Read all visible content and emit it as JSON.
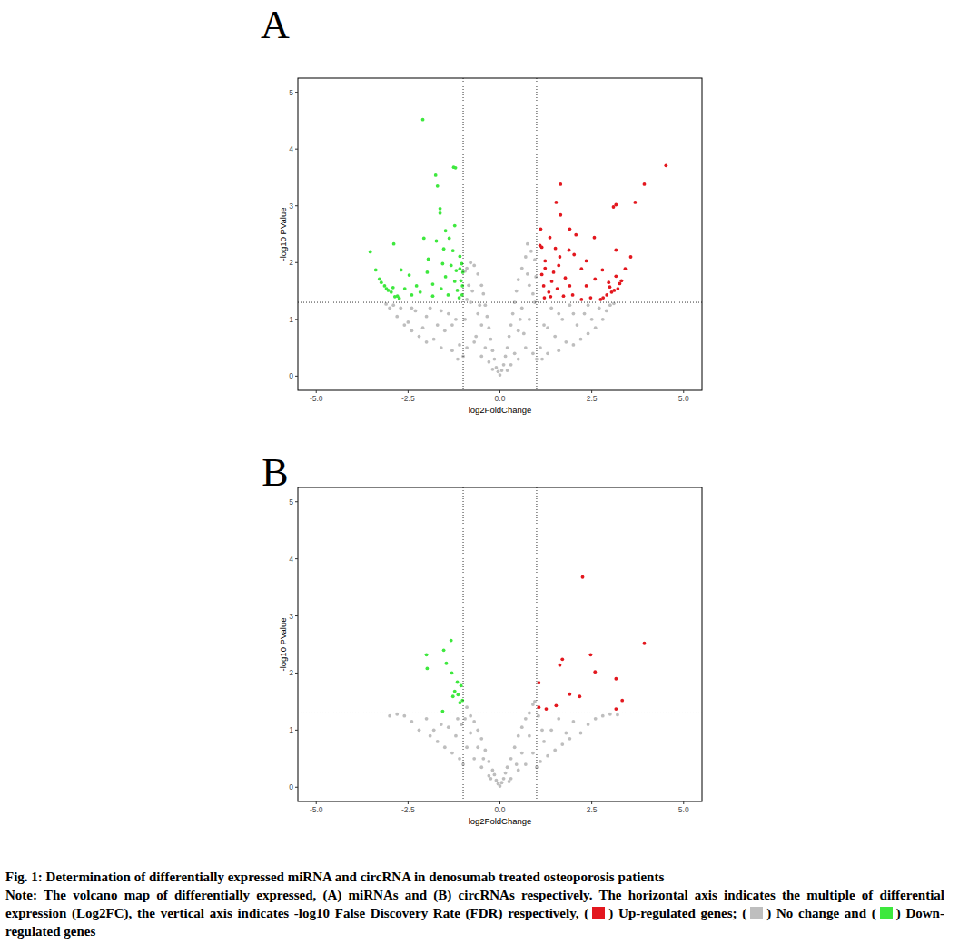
{
  "chart_data": [
    {
      "type": "scatter",
      "title": "A",
      "x_label": "log2FoldChange",
      "y_label": "-log10 PValue",
      "xlim": [
        -5.5,
        5.5
      ],
      "ylim": [
        -0.25,
        5.25
      ],
      "xticks": [
        {
          "value": -5,
          "label": "-5.0"
        },
        -2.5,
        {
          "value": 0,
          "label": "0.0"
        },
        2.5,
        {
          "value": 5,
          "label": "5.0"
        }
      ],
      "yticks": [
        0,
        1,
        2,
        3,
        4,
        5
      ],
      "thresholds": {
        "x": [
          -1,
          1
        ],
        "y": 1.3
      },
      "series": [
        {
          "color": "#bebebe",
          "x": [
            0,
            0.05,
            -0.05,
            0.1,
            -0.1,
            0.15,
            -0.15,
            0.2,
            -0.2,
            0.25,
            -0.25,
            0.3,
            -0.3,
            0.35,
            -0.35,
            0.4,
            -0.4,
            0.45,
            -0.45,
            0.5,
            -0.5,
            0.6,
            -0.6,
            0.7,
            -0.7,
            0.75,
            -0.8,
            0.85,
            -0.9,
            0.95,
            0.3,
            -0.3,
            0.5,
            -0.5,
            0.5,
            -0.5,
            0.6,
            -0.6,
            0.7,
            -0.7,
            0.8,
            -0.8,
            0.8,
            -0.85,
            0.9,
            -0.9,
            0.95,
            -0.95,
            1,
            -1,
            1.1,
            -1.1,
            1.2,
            -1.2,
            1.3,
            -1.3,
            1.4,
            -1.4,
            1.5,
            -1.5,
            1.6,
            -1.6,
            1.7,
            -1.7,
            1.8,
            -1.8,
            1.9,
            -1.9,
            2,
            -2,
            2.1,
            -2.1,
            2.2,
            -2.2,
            2.3,
            -2.3,
            2.4,
            -2.4,
            2.5,
            -2.5,
            2.6,
            -2.6,
            2.7,
            -2.7,
            2.8,
            -2.8,
            2.9,
            -2.9,
            3,
            -3,
            3.1,
            -3.1,
            1.15,
            -1.15,
            0.2,
            -0.2,
            0.4,
            -0.4,
            0.65,
            -0.65,
            0.9,
            -0.9,
            0.55,
            -0.55,
            1.6,
            -1.6,
            2,
            -2,
            2.4,
            -2.4,
            1.3,
            -1.3,
            0.75,
            -0.75,
            -0.95,
            0.98
          ],
          "values": [
            0.02,
            0.1,
            0.08,
            0.2,
            0.15,
            0.35,
            0.3,
            0.5,
            0.45,
            0.7,
            0.65,
            0.9,
            0.85,
            1.1,
            1.05,
            1.3,
            1.25,
            1.5,
            1.45,
            1.7,
            1.6,
            1.9,
            1.8,
            2.1,
            1.95,
            2.33,
            2,
            2.2,
            1.9,
            2.05,
            0.2,
            0.25,
            0.3,
            0.35,
            0.8,
            0.9,
            1.2,
            1.1,
            0.5,
            0.6,
            1,
            1.3,
            1.6,
            1.6,
            0.4,
            0.5,
            1.3,
            1,
            0.3,
            0.35,
            0.5,
            0.55,
            0.9,
            1,
            0.4,
            0.45,
            1.2,
            1.1,
            0.7,
            0.8,
            0.45,
            0.5,
            1,
            0.9,
            0.6,
            0.65,
            1.25,
            1.2,
            0.55,
            0.6,
            0.9,
            0.85,
            0.65,
            0.7,
            1.1,
            1.15,
            0.75,
            0.8,
            1,
            0.95,
            0.85,
            0.9,
            1.2,
            1.2,
            1,
            1.05,
            1.15,
            1.25,
            1.25,
            1.2,
            1.28,
            1.27,
            0.3,
            0.3,
            0.1,
            0.12,
            0.4,
            0.5,
            0.75,
            0.7,
            1.45,
            1.35,
            1,
            1.25,
            1.1,
            1.15,
            1.1,
            1.05,
            1.25,
            1.2,
            0.85,
            0.9,
            1.8,
            1.5,
            1.85,
            1.75
          ]
        },
        {
          "color": "#3ee83e",
          "x": [
            -2.1,
            -1.26,
            -1.21,
            -1.75,
            -1.7,
            -1.63,
            -1.63,
            -1.23,
            -1.48,
            -2.89,
            -3.53,
            -2.07,
            -1.38,
            -1.73,
            -1.09,
            -1.04,
            -3.14,
            -3.04,
            -2.96,
            -2.86,
            -2.79,
            -3.38,
            -3.28,
            -2.47,
            -2.27,
            -1.98,
            -1.83,
            -1.6,
            -1.48,
            -1.33,
            -1.23,
            -1.16,
            -1.11,
            -1.01,
            -1.02,
            -1.19,
            -1.56,
            -2.17,
            -2.59,
            -2.69,
            -1.95,
            -1.41,
            -1.06,
            -1.28,
            -1.53,
            -1.83,
            -2.4,
            -3.23,
            -3.09,
            -2.91,
            -2.74,
            -1.09,
            -1.03
          ],
          "values": [
            4.52,
            3.68,
            3.67,
            3.54,
            3.35,
            2.95,
            2.87,
            2.65,
            2.56,
            2.33,
            2.19,
            2.43,
            2.43,
            2.38,
            2.11,
            1.98,
            1.59,
            1.51,
            1.48,
            1.4,
            1.41,
            1.87,
            1.71,
            1.78,
            1.59,
            1.83,
            1.62,
            1.54,
            1.75,
            1.95,
            1.67,
            1.51,
            1.38,
            1.83,
            1.59,
            1.86,
            1.98,
            1.48,
            1.54,
            1.87,
            2.06,
            1.43,
            1.68,
            2.21,
            2.24,
            1.41,
            1.43,
            1.65,
            1.54,
            1.56,
            1.37,
            1.89,
            1.43
          ]
        },
        {
          "color": "#e3171e",
          "x": [
            4.52,
            3.93,
            1.65,
            3.68,
            3.16,
            3.09,
            1.53,
            1.65,
            1.11,
            1.9,
            2.57,
            2.07,
            1.36,
            3.16,
            3.56,
            1.14,
            1.51,
            1.88,
            1.09,
            2.02,
            2.35,
            1.23,
            1.6,
            2.79,
            3.41,
            3.16,
            2.22,
            1.46,
            1.14,
            1.78,
            2.59,
            2.96,
            3.26,
            3.21,
            3.11,
            3.04,
            2.91,
            2.81,
            2.74,
            1.19,
            1.33,
            1.56,
            1.73,
            1.98,
            2.22,
            2.47,
            1.21,
            1.41,
            1.9,
            2.35,
            1.23,
            1.63,
            1.38,
            3.31,
            2.99
          ],
          "values": [
            3.71,
            3.38,
            3.38,
            3.06,
            3.02,
            2.98,
            3.06,
            2.84,
            2.59,
            2.59,
            2.44,
            2.49,
            2.44,
            2.22,
            2.1,
            2.27,
            2.25,
            2.22,
            2.3,
            2.14,
            2.03,
            2.03,
            1.95,
            1.87,
            1.89,
            1.76,
            1.89,
            1.83,
            1.79,
            1.73,
            1.71,
            1.65,
            1.63,
            1.54,
            1.51,
            1.48,
            1.43,
            1.38,
            1.35,
            1.59,
            1.48,
            1.54,
            1.41,
            1.43,
            1.35,
            1.38,
            1.38,
            1.67,
            1.59,
            1.59,
            1.9,
            2.1,
            1.4,
            1.68,
            1.57
          ]
        }
      ]
    },
    {
      "type": "scatter",
      "title": "B",
      "x_label": "log2FoldChange",
      "y_label": "-log10 PValue",
      "xlim": [
        -5.5,
        5.5
      ],
      "ylim": [
        -0.25,
        5.25
      ],
      "xticks": [
        {
          "value": -5,
          "label": "-5.0"
        },
        -2.5,
        {
          "value": 0,
          "label": "0.0"
        },
        2.5,
        {
          "value": 5,
          "label": "5.0"
        }
      ],
      "yticks": [
        0,
        1,
        2,
        3,
        4,
        5
      ],
      "thresholds": {
        "x": [
          -1,
          1
        ],
        "y": 1.3
      },
      "series": [
        {
          "color": "#bebebe",
          "x": [
            0,
            0.05,
            -0.05,
            0.1,
            -0.1,
            0.15,
            -0.15,
            0.2,
            -0.2,
            0.3,
            -0.3,
            0.4,
            -0.4,
            0.5,
            -0.5,
            0.6,
            -0.6,
            0.7,
            -0.7,
            0.8,
            -0.8,
            0.9,
            -0.9,
            0.95,
            -0.95,
            0.3,
            -0.3,
            0.5,
            -0.5,
            0.7,
            -0.7,
            0.9,
            -0.9,
            1,
            -1,
            0.6,
            -0.6,
            0.8,
            -0.8,
            1.1,
            -1.1,
            1.2,
            -1.2,
            1.3,
            -1.3,
            1.4,
            -1.4,
            1.5,
            -1.5,
            1.6,
            -1.6,
            1.7,
            -1.7,
            1.8,
            -1.8,
            1.9,
            -1.9,
            2,
            -2,
            2.2,
            -2.2,
            2.4,
            -2.4,
            2.6,
            -2.6,
            2.8,
            -2.8,
            3,
            -3,
            3.2,
            1.05,
            -1.05,
            1.15,
            -1.15,
            0.45,
            -0.45,
            0.25,
            -0.25
          ],
          "values": [
            0.02,
            0.08,
            0.06,
            0.15,
            0.12,
            0.25,
            0.22,
            0.35,
            0.3,
            0.5,
            0.45,
            0.7,
            0.65,
            0.9,
            0.85,
            1.05,
            1,
            1.2,
            1.15,
            1.3,
            1.25,
            1.45,
            1.4,
            1.5,
            1.2,
            0.15,
            0.2,
            0.3,
            0.35,
            0.4,
            0.5,
            0.6,
            0.7,
            0.35,
            0.4,
            0.6,
            0.7,
            0.9,
            0.95,
            0.45,
            0.5,
            0.8,
            0.9,
            0.55,
            0.6,
            1,
            1.05,
            0.65,
            0.7,
            1.2,
            1.1,
            0.75,
            0.8,
            0.95,
            1,
            0.85,
            0.9,
            1.15,
            1.2,
            0.95,
            1,
            1.1,
            1.15,
            1.2,
            1.25,
            1.25,
            1.28,
            1.28,
            1.25,
            1.27,
            1.25,
            1.1,
            1,
            1.2,
            0.4,
            0.5,
            0.1,
            0.15
          ]
        },
        {
          "color": "#3ee83e",
          "x": [
            -1.33,
            -2,
            -1.53,
            -1.98,
            -1.46,
            -1.31,
            -1.16,
            -1.06,
            -1.23,
            -1.14,
            -1.02,
            -1.09,
            -1.28,
            -1.56
          ],
          "values": [
            2.57,
            2.32,
            2.4,
            2.08,
            2.17,
            2,
            1.84,
            1.78,
            1.68,
            1.62,
            1.52,
            1.48,
            1.59,
            1.33
          ]
        },
        {
          "color": "#e3171e",
          "x": [
            2.25,
            3.93,
            2.47,
            1.7,
            1.63,
            2.59,
            3.16,
            1.06,
            1.9,
            2.17,
            3.33,
            1.53,
            1.26,
            1.06,
            3.16
          ],
          "values": [
            3.68,
            2.52,
            2.32,
            2.24,
            2.14,
            2.02,
            1.9,
            1.83,
            1.63,
            1.59,
            1.52,
            1.43,
            1.37,
            1.4,
            1.37
          ]
        }
      ]
    }
  ],
  "figure": {
    "caption_title": "Fig. 1: Determination of differentially expressed miRNA and circRNA in denosumab treated osteoporosis patients",
    "note_parts": [
      "Note: The volcano map of differentially expressed, (A) miRNAs and (B) circRNAs respectively. The horizontal axis indicates the multiple of differential expression (Log2FC), the vertical axis indicates -log10 False Discovery Rate (FDR) respectively, (",
      ") ",
      "; (",
      ") ",
      " and (",
      ") "
    ],
    "legend": [
      {
        "name": "Up-regulated genes",
        "color": "#e3171e"
      },
      {
        "name": "No change",
        "color": "#bebebe"
      },
      {
        "name": "Down-regulated genes",
        "color": "#3ee83e"
      }
    ]
  }
}
